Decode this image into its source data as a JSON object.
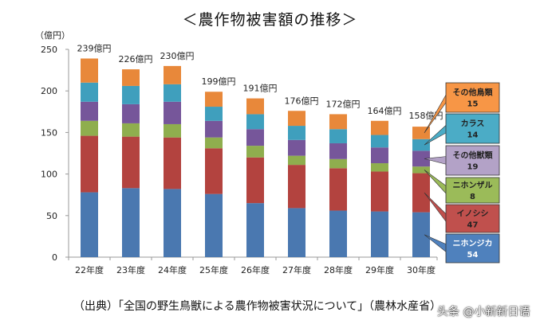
{
  "chart_data": {
    "type": "bar",
    "stacked": true,
    "title": "＜農作物被害額の推移＞",
    "ylabel": "（億円）",
    "xlabel": "",
    "ylim": [
      0,
      250
    ],
    "yticks": [
      0,
      50,
      100,
      150,
      200,
      250
    ],
    "grid": false,
    "legend": "right (callout labels on last bar)",
    "categories": [
      "22年度",
      "23年度",
      "24年度",
      "25年度",
      "26年度",
      "27年度",
      "28年度",
      "29年度",
      "30年度"
    ],
    "totals": [
      239,
      226,
      230,
      199,
      191,
      176,
      172,
      164,
      158
    ],
    "total_label_suffix": "億円",
    "series": [
      {
        "name": "ニホンジカ",
        "color": "#4a78b0",
        "box_color": "#4f81bd",
        "values": [
          78,
          83,
          82,
          76,
          65,
          59,
          56,
          55,
          54
        ]
      },
      {
        "name": "イノシシ",
        "color": "#b3433f",
        "box_color": "#c0504d",
        "values": [
          68,
          62,
          62,
          55,
          55,
          52,
          51,
          48,
          47
        ]
      },
      {
        "name": "ニホンザル",
        "color": "#8fae4e",
        "box_color": "#9bbb59",
        "values": [
          18,
          16,
          16,
          13,
          14,
          11,
          11,
          10,
          8
        ]
      },
      {
        "name": "その他獣類",
        "color": "#76569a",
        "box_color": "#b3a2c7",
        "values": [
          23,
          23,
          27,
          20,
          20,
          19,
          19,
          19,
          19
        ]
      },
      {
        "name": "カラス",
        "color": "#3f9fbd",
        "box_color": "#4bacc6",
        "values": [
          23,
          22,
          21,
          17,
          18,
          17,
          17,
          15,
          14
        ]
      },
      {
        "name": "その他鳥類",
        "color": "#e8883a",
        "box_color": "#f79646",
        "values": [
          29,
          20,
          22,
          18,
          19,
          18,
          18,
          17,
          15
        ]
      }
    ]
  },
  "source": "（出典）「全国の野生鳥獣による農作物被害状況について」（農林水産省）",
  "watermark": "头条 @小新新日语"
}
